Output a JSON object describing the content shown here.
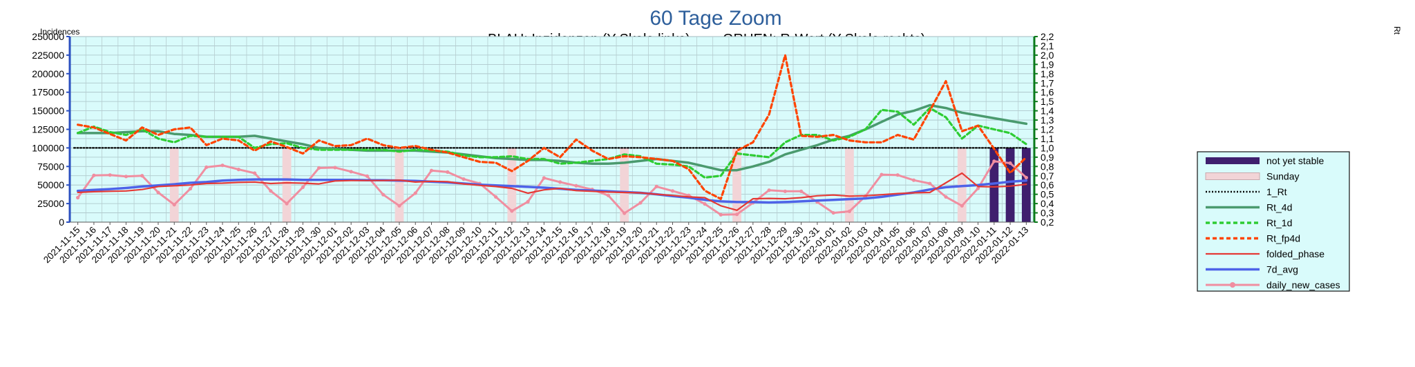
{
  "chart_data": {
    "type": "line",
    "title": "60 Tage Zoom",
    "subtitle_left": "BLAU: Inzidenzen (Y-Skala links)",
    "subtitle_right": "GRUEN: R-Wert (Y-Skala rechts)",
    "ylabel_left": "Incidences",
    "ylabel_right": "Rt",
    "ylim_left": [
      0,
      250000
    ],
    "ylim_right": [
      0.2,
      2.2
    ],
    "yticks_left": [
      "0",
      "25000",
      "50000",
      "75000",
      "100000",
      "125000",
      "150000",
      "175000",
      "200000",
      "225000",
      "250000"
    ],
    "yticks_right": [
      "0,2",
      "0,3",
      "0,4",
      "0,5",
      "0,6",
      "0,7",
      "0,8",
      "0,9",
      "1,0",
      "1,1",
      "1,2",
      "1,3",
      "1,4",
      "1,5",
      "1,6",
      "1,7",
      "1,8",
      "1,9",
      "2,0",
      "2,1",
      "2,2"
    ],
    "grid": true,
    "legend_position": "right",
    "x": [
      "2021-11-15",
      "2021-11-16",
      "2021-11-17",
      "2021-11-18",
      "2021-11-19",
      "2021-11-20",
      "2021-11-21",
      "2021-11-22",
      "2021-11-23",
      "2021-11-24",
      "2021-11-25",
      "2021-11-26",
      "2021-11-27",
      "2021-11-28",
      "2021-11-29",
      "2021-11-30",
      "2021-12-01",
      "2021-12-02",
      "2021-12-03",
      "2021-12-04",
      "2021-12-05",
      "2021-12-06",
      "2021-12-07",
      "2021-12-08",
      "2021-12-09",
      "2021-12-10",
      "2021-12-11",
      "2021-12-12",
      "2021-12-13",
      "2021-12-14",
      "2021-12-15",
      "2021-12-16",
      "2021-12-17",
      "2021-12-18",
      "2021-12-19",
      "2021-12-20",
      "2021-12-21",
      "2021-12-22",
      "2021-12-23",
      "2021-12-24",
      "2021-12-25",
      "2021-12-26",
      "2021-12-27",
      "2021-12-28",
      "2021-12-29",
      "2021-12-30",
      "2021-12-31",
      "2022-01-01",
      "2022-01-02",
      "2022-01-03",
      "2022-01-04",
      "2022-01-05",
      "2022-01-06",
      "2022-01-07",
      "2022-01-08",
      "2022-01-09",
      "2022-01-10",
      "2022-01-11",
      "2022-01-12",
      "2022-01-13"
    ],
    "sunday_bars": {
      "name": "Sunday",
      "dates": [
        "2021-11-21",
        "2021-11-28",
        "2021-12-05",
        "2021-12-12",
        "2021-12-19",
        "2021-12-26",
        "2022-01-02",
        "2022-01-09"
      ],
      "value": 100000,
      "color": "#f2d4d7"
    },
    "not_yet_stable": {
      "name": "not yet stable",
      "dates": [
        "2022-01-11",
        "2022-01-12",
        "2022-01-13"
      ],
      "value": 100000,
      "color": "#3f1f6e"
    },
    "series": [
      {
        "name": "1_Rt",
        "axis": "right",
        "color": "#000000",
        "style": "dotted",
        "values": [
          1.0,
          1.0,
          1.0,
          1.0,
          1.0,
          1.0,
          1.0,
          1.0,
          1.0,
          1.0,
          1.0,
          1.0,
          1.0,
          1.0,
          1.0,
          1.0,
          1.0,
          1.0,
          1.0,
          1.0,
          1.0,
          1.0,
          1.0,
          1.0,
          1.0,
          1.0,
          1.0,
          1.0,
          1.0,
          1.0,
          1.0,
          1.0,
          1.0,
          1.0,
          1.0,
          1.0,
          1.0,
          1.0,
          1.0,
          1.0,
          1.0,
          1.0,
          1.0,
          1.0,
          1.0,
          1.0,
          1.0,
          1.0,
          1.0,
          1.0,
          1.0,
          1.0,
          1.0,
          1.0,
          1.0,
          1.0,
          1.0,
          1.0,
          1.0,
          1.0
        ]
      },
      {
        "name": "Rt_4d",
        "axis": "right",
        "color": "#4a9a6e",
        "style": "solid-thick",
        "values": [
          1.16,
          1.16,
          1.16,
          1.17,
          1.18,
          1.18,
          1.15,
          1.14,
          1.12,
          1.12,
          1.12,
          1.13,
          1.1,
          1.07,
          1.04,
          1.0,
          0.99,
          0.98,
          0.97,
          0.97,
          0.97,
          0.97,
          0.96,
          0.95,
          0.93,
          0.91,
          0.89,
          0.88,
          0.87,
          0.87,
          0.86,
          0.84,
          0.83,
          0.83,
          0.84,
          0.86,
          0.88,
          0.86,
          0.84,
          0.8,
          0.76,
          0.76,
          0.8,
          0.85,
          0.93,
          0.98,
          1.03,
          1.09,
          1.13,
          1.2,
          1.28,
          1.36,
          1.4,
          1.46,
          1.43,
          1.38,
          1.35,
          1.32,
          1.29,
          1.26
        ]
      },
      {
        "name": "Rt_1d",
        "axis": "right",
        "color": "#2ecc33",
        "style": "dashed",
        "values": [
          1.16,
          1.23,
          1.17,
          1.14,
          1.2,
          1.1,
          1.06,
          1.13,
          1.12,
          1.12,
          1.12,
          1.0,
          1.04,
          1.05,
          1.0,
          0.98,
          0.98,
          0.98,
          0.98,
          0.98,
          0.96,
          0.98,
          0.97,
          0.96,
          0.92,
          0.9,
          0.9,
          0.91,
          0.88,
          0.88,
          0.83,
          0.84,
          0.86,
          0.88,
          0.93,
          0.91,
          0.83,
          0.82,
          0.8,
          0.68,
          0.7,
          0.94,
          0.92,
          0.9,
          1.06,
          1.14,
          1.14,
          1.08,
          1.12,
          1.2,
          1.41,
          1.39,
          1.25,
          1.43,
          1.33,
          1.1,
          1.24,
          1.2,
          1.16,
          1.04
        ]
      },
      {
        "name": "Rt_fp4d",
        "axis": "right",
        "color": "#ff4400",
        "style": "dashed",
        "values": [
          1.25,
          1.22,
          1.15,
          1.08,
          1.22,
          1.14,
          1.2,
          1.22,
          1.03,
          1.1,
          1.08,
          0.97,
          1.07,
          1.01,
          0.94,
          1.08,
          1.02,
          1.03,
          1.1,
          1.03,
          1.0,
          1.02,
          0.98,
          0.95,
          0.9,
          0.85,
          0.84,
          0.75,
          0.86,
          1.0,
          0.9,
          1.09,
          0.97,
          0.88,
          0.91,
          0.9,
          0.88,
          0.86,
          0.77,
          0.54,
          0.45,
          0.97,
          1.06,
          1.36,
          2.0,
          1.13,
          1.12,
          1.14,
          1.08,
          1.06,
          1.06,
          1.14,
          1.09,
          1.4,
          1.72,
          1.18,
          1.24,
          0.99,
          0.73,
          0.9
        ]
      },
      {
        "name": "folded_phase",
        "axis": "left",
        "color": "#e53935",
        "style": "solid",
        "values": [
          40000,
          41000,
          41500,
          42000,
          44000,
          48000,
          49000,
          50000,
          52000,
          52500,
          53500,
          54000,
          52000,
          53000,
          52500,
          51500,
          55500,
          56000,
          56000,
          56000,
          56500,
          54000,
          55000,
          54500,
          51500,
          49500,
          48000,
          45500,
          39000,
          43500,
          45500,
          42500,
          41500,
          40500,
          40000,
          39500,
          37500,
          36000,
          34000,
          33000,
          22000,
          16000,
          31500,
          32000,
          31500,
          33000,
          35500,
          36500,
          35000,
          35500,
          37000,
          38500,
          39500,
          40000,
          53000,
          66000,
          48000,
          47500,
          48500,
          51000
        ]
      },
      {
        "name": "7d_avg",
        "axis": "left",
        "color": "#4d63e8",
        "style": "solid-thick",
        "values": [
          42000,
          43500,
          44500,
          46000,
          48000,
          49500,
          51000,
          53000,
          54000,
          56000,
          57000,
          57500,
          57500,
          57500,
          57000,
          57000,
          57000,
          57000,
          56500,
          56500,
          56000,
          55500,
          54500,
          53500,
          52000,
          50500,
          49500,
          48500,
          47500,
          46500,
          45000,
          43500,
          42500,
          41500,
          40500,
          39500,
          37500,
          35000,
          33000,
          30000,
          28000,
          27000,
          27000,
          26500,
          27000,
          28000,
          29000,
          30000,
          31000,
          32000,
          34000,
          37000,
          40000,
          44000,
          47000,
          48500,
          50000,
          52000,
          54500,
          56000
        ]
      },
      {
        "name": "daily_new_cases",
        "axis": "left",
        "color": "#f08ea0",
        "style": "marker",
        "values": [
          33000,
          63000,
          63500,
          61500,
          62500,
          40000,
          23500,
          45000,
          74000,
          76500,
          71000,
          66000,
          42000,
          25000,
          47000,
          73000,
          73500,
          68000,
          62000,
          37000,
          22000,
          39000,
          69500,
          67500,
          58000,
          52000,
          34000,
          15000,
          27500,
          59500,
          54000,
          49000,
          44000,
          36000,
          12000,
          26000,
          48000,
          42000,
          36000,
          24500,
          10000,
          10500,
          26000,
          43000,
          41500,
          41500,
          27000,
          12500,
          14500,
          35000,
          64000,
          63500,
          56500,
          52000,
          34000,
          22000,
          45500,
          82000,
          79500,
          60000
        ]
      }
    ]
  }
}
